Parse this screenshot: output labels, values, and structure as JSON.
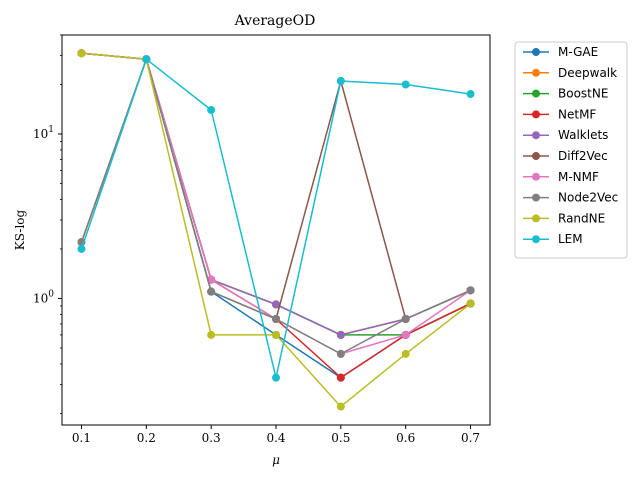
{
  "chart_data": {
    "type": "line",
    "title": "AverageOD",
    "xlabel": "μ",
    "ylabel": "KS-log",
    "yscale": "log",
    "xlim": [
      0.07,
      0.73
    ],
    "ylim": [
      0.17,
      40
    ],
    "x": [
      0.1,
      0.2,
      0.3,
      0.4,
      0.5,
      0.6,
      0.7
    ],
    "x_tick_labels": [
      "0.1",
      "0.2",
      "0.3",
      "0.4",
      "0.5",
      "0.6",
      "0.7"
    ],
    "y_major_ticks": [
      {
        "value": 1,
        "base": "10",
        "exp": "0"
      },
      {
        "value": 10,
        "base": "10",
        "exp": "1"
      }
    ],
    "grid": false,
    "legend_position": "outside-right",
    "series": [
      {
        "name": "M-GAE",
        "color": "#1f77b4",
        "values": [
          31,
          28.5,
          1.1,
          0.6,
          0.33,
          0.6,
          0.93
        ]
      },
      {
        "name": "Deepwalk",
        "color": "#ff7f0e",
        "values": [
          31,
          28.5,
          1.3,
          0.92,
          0.6,
          0.75,
          1.12
        ]
      },
      {
        "name": "BoostNE",
        "color": "#2ca02c",
        "values": [
          31,
          28.5,
          1.3,
          0.92,
          0.6,
          0.6,
          0.93
        ]
      },
      {
        "name": "NetMF",
        "color": "#d62728",
        "values": [
          2.2,
          28.5,
          1.3,
          0.75,
          0.33,
          0.6,
          0.93
        ]
      },
      {
        "name": "Walklets",
        "color": "#9467bd",
        "values": [
          31,
          28.5,
          1.3,
          0.92,
          0.6,
          0.75,
          1.12
        ]
      },
      {
        "name": "Diff2Vec",
        "color": "#8c564b",
        "values": [
          31,
          28.5,
          1.1,
          0.75,
          21,
          0.75,
          1.12
        ]
      },
      {
        "name": "M-NMF",
        "color": "#e377c2",
        "values": [
          31,
          28.5,
          1.3,
          0.75,
          0.46,
          0.6,
          1.12
        ]
      },
      {
        "name": "Node2Vec",
        "color": "#7f7f7f",
        "values": [
          2.2,
          28.5,
          1.1,
          0.75,
          0.46,
          0.75,
          1.12
        ]
      },
      {
        "name": "RandNE",
        "color": "#bcbd22",
        "values": [
          31,
          28.5,
          0.6,
          0.6,
          0.22,
          0.46,
          0.93
        ]
      },
      {
        "name": "LEM",
        "color": "#17becf",
        "values": [
          2.0,
          28.5,
          14,
          0.33,
          21,
          20,
          17.5
        ]
      }
    ]
  }
}
